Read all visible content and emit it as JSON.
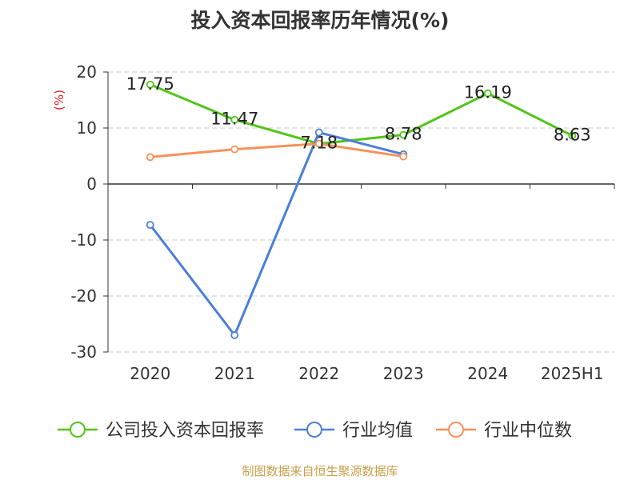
{
  "chart_data": {
    "type": "line",
    "title": "投入资本回报率历年情况(%)",
    "ylabel": "(%)",
    "categories": [
      "2020",
      "2021",
      "2022",
      "2023",
      "2024",
      "2025H1"
    ],
    "ylim": [
      -30,
      20
    ],
    "yticks": [
      -30,
      -20,
      -10,
      0,
      10,
      20
    ],
    "grid": true,
    "legend_position": "bottom",
    "series": [
      {
        "name": "公司投入资本回报率",
        "color": "#52c41a",
        "values": [
          17.75,
          11.47,
          7.18,
          8.78,
          16.19,
          8.63
        ],
        "show_labels": true
      },
      {
        "name": "行业均值",
        "color": "#4a7fd8",
        "values": [
          -7.3,
          -27.0,
          9.2,
          5.3,
          null,
          null
        ],
        "show_labels": false
      },
      {
        "name": "行业中位数",
        "color": "#f7925a",
        "values": [
          4.8,
          6.2,
          7.2,
          4.9,
          null,
          null
        ],
        "show_labels": false
      }
    ]
  },
  "footer": "制图数据来自恒生聚源数据库"
}
